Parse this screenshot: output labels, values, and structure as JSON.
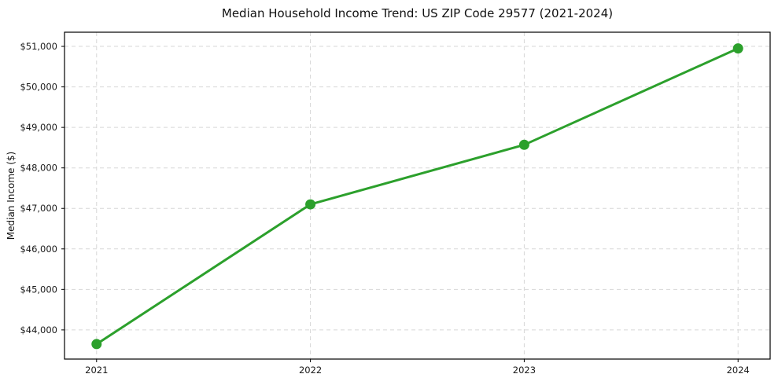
{
  "figure": {
    "title": "Median Household Income Trend: US ZIP Code 29577 (2021-2024)",
    "y_axis_title": "Median Income ($)"
  },
  "chart_data": {
    "type": "line",
    "title": "Median Household Income Trend: US ZIP Code 29577 (2021-2024)",
    "xlabel": "",
    "ylabel": "Median Income ($)",
    "series": [
      {
        "name": "Median household income",
        "x": [
          2021,
          2022,
          2023,
          2024
        ],
        "values": [
          43650,
          47100,
          48570,
          50950
        ]
      }
    ],
    "xlim": [
      2020.85,
      2024.15
    ],
    "ylim": [
      43280,
      51350
    ],
    "xticks": {
      "values": [
        2021,
        2022,
        2023,
        2024
      ],
      "labels": [
        "2021",
        "2022",
        "2023",
        "2024"
      ]
    },
    "yticks": {
      "values": [
        44000,
        45000,
        46000,
        47000,
        48000,
        49000,
        50000,
        51000
      ],
      "labels": [
        "$44,000",
        "$45,000",
        "$46,000",
        "$47,000",
        "$48,000",
        "$49,000",
        "$50,000",
        "$51,000"
      ]
    },
    "grid": true,
    "grid_style": "dashed",
    "legend": false,
    "colors": {
      "line": "#2ca02c",
      "marker": "#2ca02c",
      "grid": "#d7d7d7",
      "spine": "#000000",
      "text": "#1a1a1a",
      "background": "#ffffff"
    }
  }
}
